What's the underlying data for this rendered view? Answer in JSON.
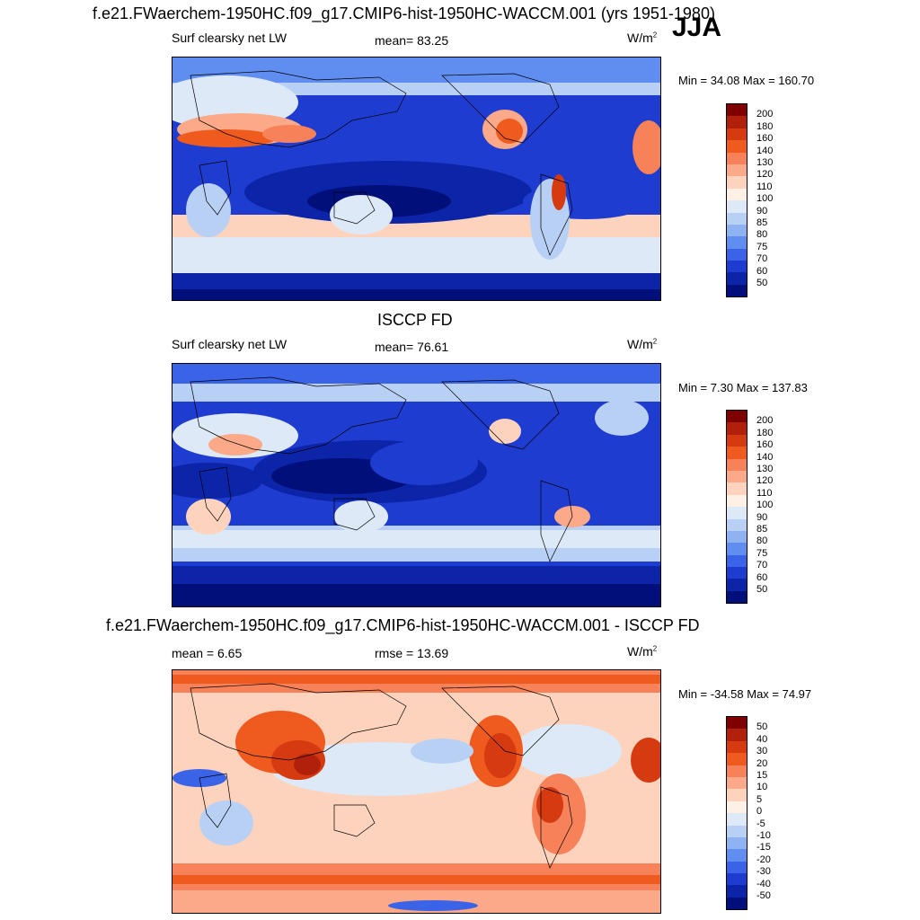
{
  "header": {
    "season": "JJA"
  },
  "chart_data": [
    {
      "type": "heatmap",
      "title": "f.e21.FWaerchem-1950HC.f09_g17.CMIP6-hist-1950HC-WACCM.001 (yrs 1951-1980)",
      "left_label": "Surf clearsky net LW",
      "stat_label": "mean=  83.25",
      "units": "W/m",
      "units_exp": "2",
      "minmax": "Min =  34.08 Max = 160.70",
      "levels": [
        "200",
        "180",
        "160",
        "140",
        "130",
        "120",
        "110",
        "100",
        "90",
        "85",
        "80",
        "75",
        "70",
        "60",
        "50"
      ]
    },
    {
      "type": "heatmap",
      "title": "ISCCP FD",
      "left_label": "Surf clearsky net LW",
      "stat_label": "mean=  76.61",
      "units": "W/m",
      "units_exp": "2",
      "minmax": "Min =   7.30 Max = 137.83",
      "levels": [
        "200",
        "180",
        "160",
        "140",
        "130",
        "120",
        "110",
        "100",
        "90",
        "85",
        "80",
        "75",
        "70",
        "60",
        "50"
      ]
    },
    {
      "type": "heatmap",
      "title": "f.e21.FWaerchem-1950HC.f09_g17.CMIP6-hist-1950HC-WACCM.001 - ISCCP FD",
      "left_label": "mean =   6.65",
      "stat_label": "rmse =  13.69",
      "units": "W/m",
      "units_exp": "2",
      "minmax": "Min = -34.58 Max =  74.97",
      "levels": [
        "50",
        "40",
        "30",
        "20",
        "15",
        "10",
        "5",
        "0",
        "-5",
        "-10",
        "-15",
        "-20",
        "-30",
        "-40",
        "-50"
      ]
    }
  ],
  "colors": {
    "palette": [
      "#7f0000",
      "#b0200a",
      "#d63a10",
      "#ef5a1f",
      "#f7825a",
      "#fba988",
      "#fdd3bd",
      "#fff0e6",
      "#dde9f7",
      "#b9d0f5",
      "#8fb2f2",
      "#5f8ef0",
      "#3a63e8",
      "#1f3cd0",
      "#0b24a8",
      "#000f7a"
    ]
  }
}
